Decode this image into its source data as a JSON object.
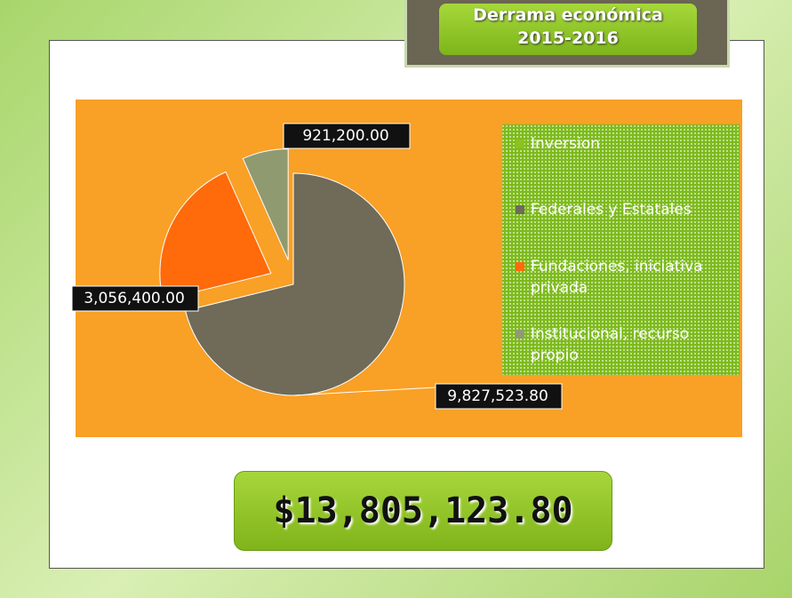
{
  "title": "Derrama económica",
  "subtitle": "2015-2016",
  "total": "$13,805,123.80",
  "chart_data": {
    "type": "pie",
    "categories": [
      "Inversion",
      "Federales y Estatales",
      "Fundaciones, iniciativa privada",
      "Institucional, recurso propio"
    ],
    "values": [
      null,
      9827523.8,
      3056400.0,
      921200.0
    ],
    "value_labels": [
      null,
      "9,827,523.80",
      "3,056,400.00",
      "921,200.00"
    ],
    "colors": [
      "#8cc21e",
      "#6f6b58",
      "#ff6a0a",
      "#8f9a70"
    ],
    "legend": "right"
  }
}
